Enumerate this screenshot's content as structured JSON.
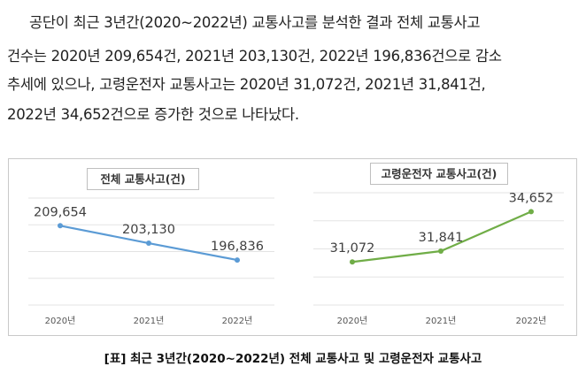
{
  "body_text": {
    "lines": [
      "공단이 최근 3년간(2020~2022년) 교통사고를 분석한 결과 전체 교통사고",
      "건수는 2020년 209,654건, 2021년 203,130건, 2022년 196,836건으로 감소",
      "추세에 있으나, 고령운전자 교통사고는 2020년 31,072건, 2021년 31,841건,",
      "2022년 34,652건으로 증가한 것으로 나타났다."
    ]
  },
  "chart_data": [
    {
      "type": "line",
      "title": "전체 교통사고(건)",
      "categories": [
        "2020년",
        "2021년",
        "2022년"
      ],
      "values": [
        209654,
        203130,
        196836
      ],
      "labels": [
        "209,654",
        "203,130",
        "196,836"
      ],
      "color": "#5b9bd5",
      "ylim": [
        180000,
        220000
      ],
      "grid": true,
      "xlabel": "",
      "ylabel": ""
    },
    {
      "type": "line",
      "title": "고령운전자 교통사고(건)",
      "categories": [
        "2020년",
        "2021년",
        "2022년"
      ],
      "values": [
        31072,
        31841,
        34652
      ],
      "labels": [
        "31,072",
        "31,841",
        "34,652"
      ],
      "color": "#70ad47",
      "ylim": [
        28000,
        36000
      ],
      "grid": true,
      "xlabel": "",
      "ylabel": ""
    }
  ],
  "caption": "[표] 최근 3년간(2020~2022년) 전체 교통사고 및 고령운전자 교통사고"
}
